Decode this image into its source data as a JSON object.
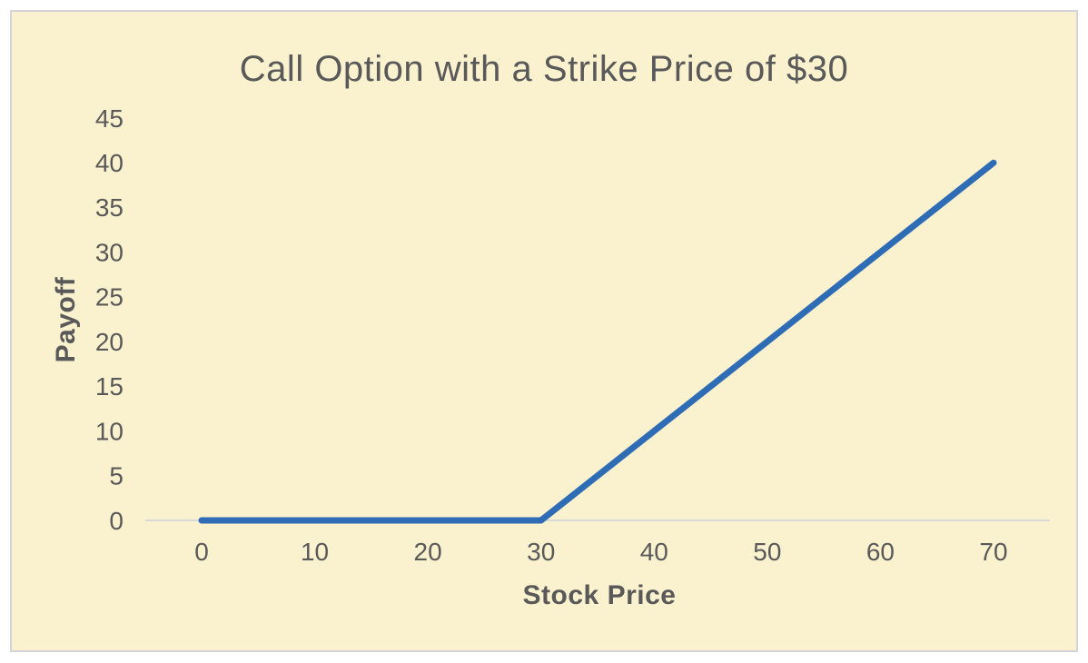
{
  "chart": {
    "title": "Call Option with a Strike Price of $30",
    "xlabel": "Stock Price",
    "ylabel": "Payoff"
  },
  "chart_data": {
    "type": "line",
    "title": "Call Option with a Strike Price of $30",
    "xlabel": "Stock Price",
    "ylabel": "Payoff",
    "x": [
      0,
      10,
      20,
      30,
      40,
      50,
      60,
      70
    ],
    "series": [
      {
        "name": "Payoff",
        "values": [
          0,
          0,
          0,
          0,
          10,
          20,
          30,
          40
        ]
      }
    ],
    "x_ticks": [
      0,
      10,
      20,
      30,
      40,
      50,
      60,
      70
    ],
    "y_ticks": [
      0,
      5,
      10,
      15,
      20,
      25,
      30,
      35,
      40,
      45
    ],
    "ylim": [
      0,
      45
    ],
    "grid": false,
    "legend": "none",
    "strike_price": 30,
    "colors": {
      "line": "#2E6DB5",
      "plot_background": "#FAF1CE",
      "page_background": "#FFFFFF",
      "chart_border": "#D3D3D9",
      "axis_line": "#D9D9D9",
      "text": "#595959"
    }
  }
}
